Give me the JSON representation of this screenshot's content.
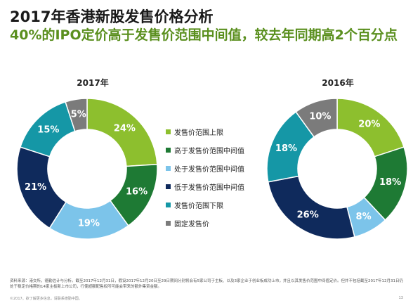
{
  "header": {
    "title": "2017年香港新股发售价格分析",
    "subtitle": "40%的IPO定价高于发售价范围中间值，较去年同期高2个百分点"
  },
  "chart_data": [
    {
      "type": "pie",
      "title": "2017年",
      "categories": [
        "发售价范围上限",
        "高于发售价范围中间值",
        "处于发售价范围中间值",
        "低于发售价范围中间值",
        "发售价范围下限",
        "固定发售价"
      ],
      "values": [
        24,
        16,
        19,
        21,
        15,
        5
      ],
      "labels": [
        "24%",
        "16%",
        "19%",
        "21%",
        "15%",
        "5%"
      ],
      "colors": [
        "#8dbf2e",
        "#1e7a34",
        "#7cc4ea",
        "#0f2a5c",
        "#1597a6",
        "#7b7b7b"
      ],
      "unit": "%"
    },
    {
      "type": "pie",
      "title": "2016年",
      "categories": [
        "发售价范围上限",
        "高于发售价范围中间值",
        "处于发售价范围中间值",
        "低于发售价范围中间值",
        "发售价范围下限",
        "固定发售价"
      ],
      "values": [
        20,
        18,
        8,
        26,
        18,
        10
      ],
      "labels": [
        "20%",
        "18%",
        "8%",
        "26%",
        "18%",
        "10%"
      ],
      "colors": [
        "#8dbf2e",
        "#1e7a34",
        "#7cc4ea",
        "#0f2a5c",
        "#1597a6",
        "#7b7b7b"
      ],
      "unit": "%"
    }
  ],
  "legend": {
    "placement": "center",
    "items": [
      {
        "label": "发售价范围上限",
        "color": "#8dbf2e"
      },
      {
        "label": "高于发售价范围中间值",
        "color": "#1e7a34"
      },
      {
        "label": "处于发售价范围中间值",
        "color": "#7cc4ea"
      },
      {
        "label": "低于发售价范围中间值",
        "color": "#0f2a5c"
      },
      {
        "label": "发售价范围下限",
        "color": "#1597a6"
      },
      {
        "label": "固定发售价",
        "color": "#7b7b7b"
      }
    ]
  },
  "footer": {
    "footnote": "资料来源：港交所，德勤估计与分析。截至2017年12月31日，假设2017年12月20日至29日期间分别将会有5家公司于主板、以及3家企业于创业板成功上市，并且以其发售价范围中间值定价。但并不包括截至2017年12月31日仍处于稳定价格期的14家主板新上市公司，行使超额配售权所可能会带来的额外集资金额。",
    "copyright": "©2017。欲了解更多信息，请联系德勤中国。",
    "page_number": "13"
  }
}
